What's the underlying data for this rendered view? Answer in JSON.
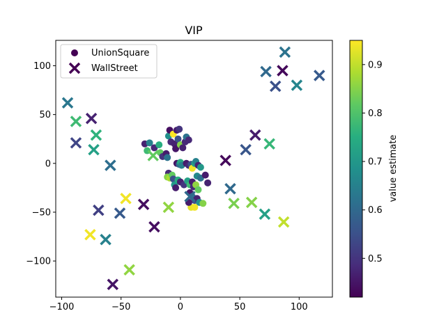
{
  "chart_data": {
    "type": "scatter",
    "title": "VIP",
    "xlabel": "",
    "ylabel": "",
    "xlim": [
      -105,
      128
    ],
    "ylim": [
      -137,
      126
    ],
    "xticks": [
      -100,
      -50,
      0,
      50,
      100
    ],
    "yticks": [
      -100,
      -50,
      0,
      50,
      100
    ],
    "grid": false,
    "legend": {
      "placement": "top-left",
      "entries": [
        "UnionSquare",
        "WallStreet"
      ]
    },
    "colorbar": {
      "label": "value estimate",
      "range": [
        0.42,
        0.95
      ],
      "ticks": [
        0.5,
        0.6,
        0.7,
        0.8,
        0.9
      ],
      "colormap": "viridis"
    },
    "series": [
      {
        "name": "UnionSquare",
        "marker": "circle",
        "points": [
          {
            "x": -30,
            "y": 20,
            "v": 0.47
          },
          {
            "x": -28,
            "y": 13,
            "v": 0.78
          },
          {
            "x": -26,
            "y": 21,
            "v": 0.65
          },
          {
            "x": -22,
            "y": 16,
            "v": 0.48
          },
          {
            "x": -18,
            "y": 19,
            "v": 0.75
          },
          {
            "x": -17,
            "y": 11,
            "v": 0.82
          },
          {
            "x": -15,
            "y": 7,
            "v": 0.5
          },
          {
            "x": -12,
            "y": 10,
            "v": 0.46
          },
          {
            "x": -11,
            "y": 6,
            "v": 0.62
          },
          {
            "x": -10,
            "y": 28,
            "v": 0.68
          },
          {
            "x": -9,
            "y": 34,
            "v": 0.44
          },
          {
            "x": -8,
            "y": 22,
            "v": 0.48
          },
          {
            "x": -6,
            "y": 30,
            "v": 0.95
          },
          {
            "x": -5,
            "y": 20,
            "v": 0.47
          },
          {
            "x": -4,
            "y": 15,
            "v": 0.45
          },
          {
            "x": -3,
            "y": 34,
            "v": 0.46
          },
          {
            "x": -2,
            "y": 25,
            "v": 0.55
          },
          {
            "x": -1,
            "y": 35,
            "v": 0.5
          },
          {
            "x": 0,
            "y": 19,
            "v": 0.85
          },
          {
            "x": 2,
            "y": 16,
            "v": 0.47
          },
          {
            "x": 4,
            "y": 22,
            "v": 0.48
          },
          {
            "x": 5,
            "y": 27,
            "v": 0.62
          },
          {
            "x": 7,
            "y": 24,
            "v": 0.48
          },
          {
            "x": -3,
            "y": 0,
            "v": 0.45
          },
          {
            "x": -1,
            "y": -1,
            "v": 0.6
          },
          {
            "x": 0,
            "y": 1,
            "v": 0.74
          },
          {
            "x": 1,
            "y": -2,
            "v": 0.65
          },
          {
            "x": 5,
            "y": 0,
            "v": 0.46
          },
          {
            "x": 7,
            "y": -2,
            "v": 0.48
          },
          {
            "x": 9,
            "y": -1,
            "v": 0.55
          },
          {
            "x": 10,
            "y": -5,
            "v": 0.94
          },
          {
            "x": 12,
            "y": 0,
            "v": 0.72
          },
          {
            "x": 13,
            "y": 2,
            "v": 0.65
          },
          {
            "x": 15,
            "y": -2,
            "v": 0.47
          },
          {
            "x": 17,
            "y": -4,
            "v": 0.7
          },
          {
            "x": 14,
            "y": -13,
            "v": 0.67
          },
          {
            "x": 17,
            "y": -15,
            "v": 0.62
          },
          {
            "x": 21,
            "y": -12,
            "v": 0.46
          },
          {
            "x": 23,
            "y": -20,
            "v": 0.47
          },
          {
            "x": -10,
            "y": -10,
            "v": 0.48
          },
          {
            "x": -11,
            "y": -14,
            "v": 0.85
          },
          {
            "x": -9,
            "y": -15,
            "v": 0.88
          },
          {
            "x": -7,
            "y": -12,
            "v": 0.82
          },
          {
            "x": -6,
            "y": -16,
            "v": 0.55
          },
          {
            "x": -5,
            "y": -22,
            "v": 0.7
          },
          {
            "x": -4,
            "y": -25,
            "v": 0.46
          },
          {
            "x": -2,
            "y": -17,
            "v": 0.75
          },
          {
            "x": 0,
            "y": -19,
            "v": 0.47
          },
          {
            "x": 3,
            "y": -22,
            "v": 0.5
          },
          {
            "x": 6,
            "y": -18,
            "v": 0.72
          },
          {
            "x": 8,
            "y": -22,
            "v": 0.78
          },
          {
            "x": 10,
            "y": -19,
            "v": 0.46
          },
          {
            "x": 11,
            "y": -24,
            "v": 0.48
          },
          {
            "x": 13,
            "y": -22,
            "v": 0.86
          },
          {
            "x": 15,
            "y": -27,
            "v": 0.82
          },
          {
            "x": 8,
            "y": -30,
            "v": 0.45
          },
          {
            "x": 10,
            "y": -34,
            "v": 0.62
          },
          {
            "x": 12,
            "y": -38,
            "v": 0.55
          },
          {
            "x": 14,
            "y": -36,
            "v": 0.47
          },
          {
            "x": 16,
            "y": -40,
            "v": 0.68
          },
          {
            "x": 19,
            "y": -41,
            "v": 0.85
          },
          {
            "x": 9,
            "y": -45,
            "v": 0.93
          },
          {
            "x": 12,
            "y": -45,
            "v": 0.94
          },
          {
            "x": 7,
            "y": -40,
            "v": 0.46
          }
        ]
      },
      {
        "name": "WallStreet",
        "marker": "x",
        "points": [
          {
            "x": 88,
            "y": 114,
            "v": 0.62
          },
          {
            "x": 72,
            "y": 94,
            "v": 0.6
          },
          {
            "x": 86,
            "y": 95,
            "v": 0.43
          },
          {
            "x": 80,
            "y": 79,
            "v": 0.55
          },
          {
            "x": 98,
            "y": 80,
            "v": 0.66
          },
          {
            "x": 117,
            "y": 90,
            "v": 0.57
          },
          {
            "x": -95,
            "y": 62,
            "v": 0.63
          },
          {
            "x": -75,
            "y": 46,
            "v": 0.47
          },
          {
            "x": -88,
            "y": 43,
            "v": 0.78
          },
          {
            "x": -71,
            "y": 29,
            "v": 0.76
          },
          {
            "x": -88,
            "y": 21,
            "v": 0.53
          },
          {
            "x": -73,
            "y": 14,
            "v": 0.72
          },
          {
            "x": -59,
            "y": -2,
            "v": 0.61
          },
          {
            "x": -23,
            "y": 8,
            "v": 0.82
          },
          {
            "x": 63,
            "y": 29,
            "v": 0.46
          },
          {
            "x": 55,
            "y": 14,
            "v": 0.56
          },
          {
            "x": 75,
            "y": 20,
            "v": 0.77
          },
          {
            "x": 38,
            "y": 3,
            "v": 0.43
          },
          {
            "x": -46,
            "y": -36,
            "v": 0.94
          },
          {
            "x": -31,
            "y": -42,
            "v": 0.44
          },
          {
            "x": -69,
            "y": -48,
            "v": 0.52
          },
          {
            "x": -51,
            "y": -51,
            "v": 0.57
          },
          {
            "x": -10,
            "y": -45,
            "v": 0.86
          },
          {
            "x": -22,
            "y": -65,
            "v": 0.44
          },
          {
            "x": -76,
            "y": -73,
            "v": 0.94
          },
          {
            "x": -63,
            "y": -78,
            "v": 0.65
          },
          {
            "x": 42,
            "y": -26,
            "v": 0.6
          },
          {
            "x": 45,
            "y": -41,
            "v": 0.84
          },
          {
            "x": 60,
            "y": -40,
            "v": 0.85
          },
          {
            "x": 71,
            "y": -52,
            "v": 0.72
          },
          {
            "x": 87,
            "y": -60,
            "v": 0.9
          },
          {
            "x": 8,
            "y": -34,
            "v": 0.6
          },
          {
            "x": -43,
            "y": -109,
            "v": 0.86
          },
          {
            "x": -57,
            "y": -124,
            "v": 0.45
          }
        ]
      }
    ]
  }
}
